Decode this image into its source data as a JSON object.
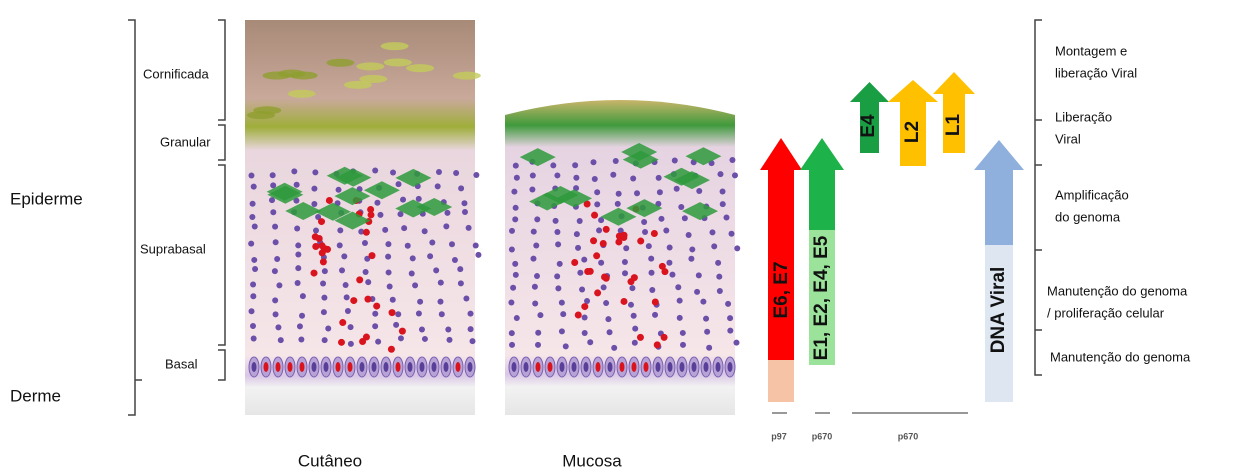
{
  "labels": {
    "epiderme": "Epiderme",
    "derme": "Derme"
  },
  "layers": [
    "Cornificada",
    "Granular",
    "Suprabasal",
    "Basal"
  ],
  "tissues": [
    "Cutâneo",
    "Mucosa"
  ],
  "genes": [
    "E6, E7",
    "E1, E2, E4, E5",
    "E4",
    "L2",
    "L1",
    "DNA Viral"
  ],
  "promoters": [
    "p97",
    "p670",
    "p670"
  ],
  "stages": [
    [
      "Montagem e",
      "liberação Viral"
    ],
    [
      "Liberação",
      "Viral"
    ],
    [
      "Amplificação",
      "do genoma"
    ],
    [
      "Manutenção do genoma",
      "/ proliferação celular"
    ],
    [
      "Manutenção do genoma"
    ]
  ]
}
